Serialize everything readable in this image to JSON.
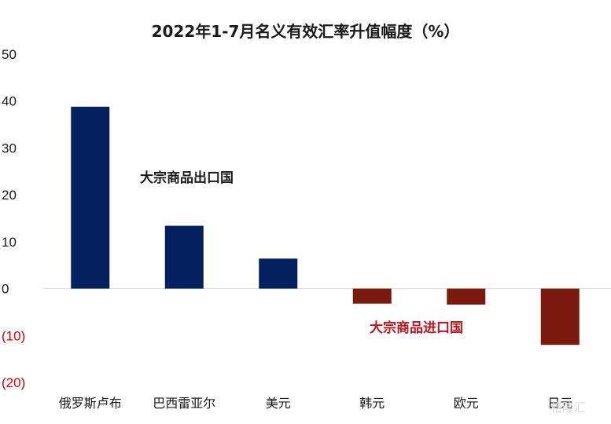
{
  "chart_data": {
    "type": "bar",
    "title": "2022年1-7月名义有效汇率升值幅度（%）",
    "categories": [
      "俄罗斯卢布",
      "巴西雷亚尔",
      "美元",
      "韩元",
      "欧元",
      "日元"
    ],
    "values": [
      38.8,
      13.4,
      6.4,
      -3.2,
      -3.4,
      -12.0
    ],
    "ylim": [
      -20,
      50
    ],
    "yticks": [
      50,
      40,
      30,
      20,
      10,
      0,
      -10,
      -20
    ],
    "ytick_labels": [
      "50",
      "40",
      "30",
      "20",
      "10",
      "0",
      "(10)",
      "(20)"
    ],
    "colors": {
      "positive_bar": "#04205e",
      "negative_bar": "#7b1a0c",
      "positive_tick": "#1a1a1a",
      "negative_tick": "#e00000",
      "export_annotation": "#1a1a1a",
      "import_annotation": "#c0141c"
    },
    "annotations": {
      "exporters": "大宗商品出口国",
      "importers": "大宗商品进口国"
    },
    "grid": false,
    "legend": "none"
  },
  "watermark": "格隆汇"
}
